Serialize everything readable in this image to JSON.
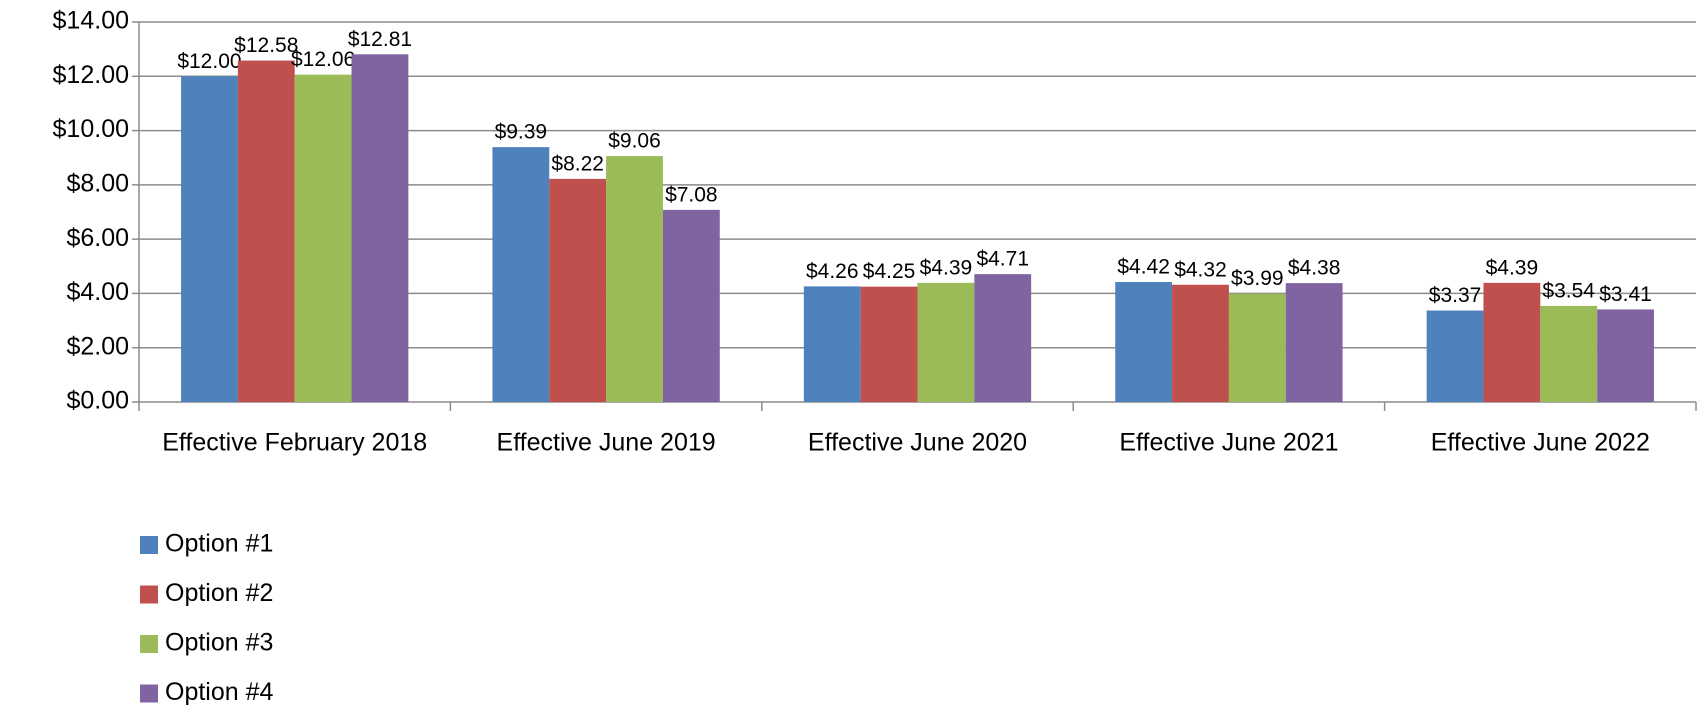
{
  "chart_data": {
    "type": "bar",
    "categories": [
      "Effective February 2018",
      "Effective June 2019",
      "Effective June 2020",
      "Effective June 2021",
      "Effective June 2022"
    ],
    "series": [
      {
        "name": "Option #1",
        "color": "#4f81bd",
        "values": [
          12.0,
          9.39,
          4.26,
          4.42,
          3.37
        ],
        "value_labels": [
          "$12.00",
          "$9.39",
          "$4.26",
          "$4.42",
          "$3.37"
        ]
      },
      {
        "name": "Option #2",
        "color": "#c0504d",
        "values": [
          12.58,
          8.22,
          4.25,
          4.32,
          4.39
        ],
        "value_labels": [
          "$12.58",
          "$8.22",
          "$4.25",
          "$4.32",
          "$4.39"
        ]
      },
      {
        "name": "Option #3",
        "color": "#9bbb59",
        "values": [
          12.06,
          9.06,
          4.39,
          3.99,
          3.54
        ],
        "value_labels": [
          "$12.06",
          "$9.06",
          "$4.39",
          "$3.99",
          "$3.54"
        ]
      },
      {
        "name": "Option #4",
        "color": "#8064a2",
        "values": [
          12.81,
          7.08,
          4.71,
          4.38,
          3.41
        ],
        "value_labels": [
          "$12.81",
          "$7.08",
          "$4.71",
          "$4.38",
          "$3.41"
        ]
      }
    ],
    "ylim": [
      0,
      14
    ],
    "yticks": [
      {
        "value": 0,
        "label": "$0.00"
      },
      {
        "value": 2,
        "label": "$2.00"
      },
      {
        "value": 4,
        "label": "$4.00"
      },
      {
        "value": 6,
        "label": "$6.00"
      },
      {
        "value": 8,
        "label": "$8.00"
      },
      {
        "value": 10,
        "label": "$10.00"
      },
      {
        "value": 12,
        "label": "$12.00"
      },
      {
        "value": 14,
        "label": "$14.00"
      }
    ],
    "grid": true,
    "legend": "bottom-left"
  }
}
